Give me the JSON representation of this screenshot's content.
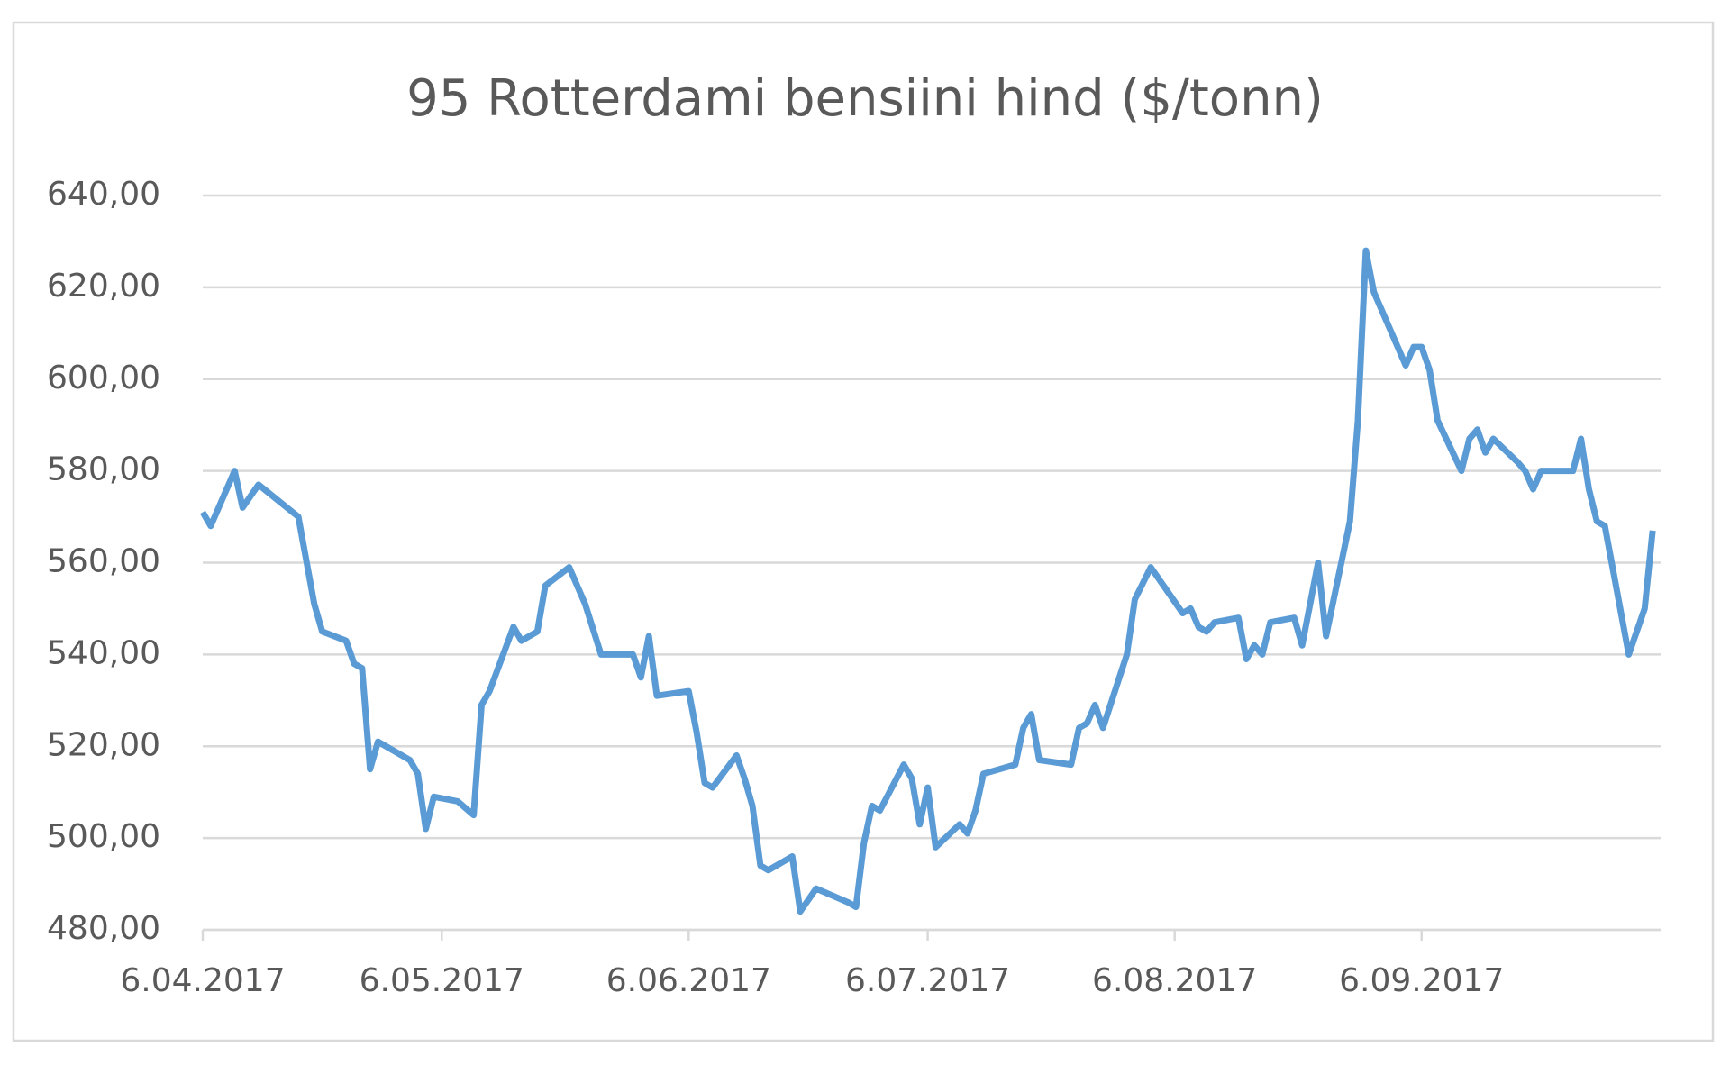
{
  "chart_data": {
    "type": "line",
    "title": "95 Rotterdami bensiini hind ($/tonn)",
    "x": [
      "2017-04-06",
      "2017-04-07",
      "2017-04-10",
      "2017-04-11",
      "2017-04-13",
      "2017-04-18",
      "2017-04-20",
      "2017-04-21",
      "2017-04-24",
      "2017-04-25",
      "2017-04-26",
      "2017-04-27",
      "2017-04-28",
      "2017-05-02",
      "2017-05-03",
      "2017-05-04",
      "2017-05-05",
      "2017-05-08",
      "2017-05-10",
      "2017-05-11",
      "2017-05-12",
      "2017-05-15",
      "2017-05-16",
      "2017-05-18",
      "2017-05-19",
      "2017-05-22",
      "2017-05-24",
      "2017-05-26",
      "2017-05-30",
      "2017-05-31",
      "2017-06-01",
      "2017-06-02",
      "2017-06-06",
      "2017-06-07",
      "2017-06-08",
      "2017-06-09",
      "2017-06-12",
      "2017-06-13",
      "2017-06-14",
      "2017-06-15",
      "2017-06-16",
      "2017-06-19",
      "2017-06-20",
      "2017-06-22",
      "2017-06-26",
      "2017-06-27",
      "2017-06-28",
      "2017-06-29",
      "2017-06-30",
      "2017-07-03",
      "2017-07-04",
      "2017-07-05",
      "2017-07-06",
      "2017-07-07",
      "2017-07-10",
      "2017-07-11",
      "2017-07-12",
      "2017-07-13",
      "2017-07-17",
      "2017-07-18",
      "2017-07-19",
      "2017-07-20",
      "2017-07-24",
      "2017-07-25",
      "2017-07-26",
      "2017-07-27",
      "2017-07-28",
      "2017-07-31",
      "2017-08-01",
      "2017-08-03",
      "2017-08-07",
      "2017-08-08",
      "2017-08-09",
      "2017-08-10",
      "2017-08-11",
      "2017-08-14",
      "2017-08-15",
      "2017-08-16",
      "2017-08-17",
      "2017-08-18",
      "2017-08-21",
      "2017-08-22",
      "2017-08-23",
      "2017-08-24",
      "2017-08-25",
      "2017-08-28",
      "2017-08-29",
      "2017-08-30",
      "2017-08-31",
      "2017-09-04",
      "2017-09-05",
      "2017-09-06",
      "2017-09-07",
      "2017-09-08",
      "2017-09-11",
      "2017-09-12",
      "2017-09-13",
      "2017-09-14",
      "2017-09-15",
      "2017-09-18",
      "2017-09-19",
      "2017-09-20",
      "2017-09-21",
      "2017-09-25",
      "2017-09-26",
      "2017-09-27",
      "2017-09-28",
      "2017-09-29",
      "2017-10-02",
      "2017-10-04",
      "2017-10-05"
    ],
    "series": [
      {
        "color": "#5b9bd5",
        "values": [
          571,
          568,
          580,
          572,
          577,
          570,
          551,
          545,
          543,
          538,
          537,
          515,
          521,
          517,
          514,
          502,
          509,
          508,
          505,
          529,
          532,
          546,
          543,
          545,
          555,
          559,
          551,
          540,
          540,
          535,
          544,
          531,
          532,
          523,
          512,
          511,
          518,
          513,
          507,
          494,
          493,
          496,
          484,
          489,
          486,
          485,
          499,
          507,
          506,
          516,
          513,
          503,
          511,
          498,
          503,
          501,
          506,
          514,
          516,
          524,
          527,
          517,
          516,
          524,
          525,
          529,
          524,
          540,
          552,
          559,
          549,
          550,
          546,
          545,
          547,
          548,
          539,
          542,
          540,
          547,
          548,
          542,
          551,
          560,
          544,
          569,
          591,
          628,
          619,
          603,
          607,
          607,
          602,
          591,
          580,
          587,
          589,
          584,
          587,
          582,
          580,
          576,
          580,
          580,
          587,
          576,
          569,
          568,
          540,
          550,
          567
        ]
      }
    ],
    "xlim": [
      "2017-04-06",
      "2017-10-06"
    ],
    "xticks": [
      {
        "value": "2017-04-06",
        "label": "6.04.2017"
      },
      {
        "value": "2017-05-06",
        "label": "6.05.2017"
      },
      {
        "value": "2017-06-06",
        "label": "6.06.2017"
      },
      {
        "value": "2017-07-06",
        "label": "6.07.2017"
      },
      {
        "value": "2017-08-06",
        "label": "6.08.2017"
      },
      {
        "value": "2017-09-06",
        "label": "6.09.2017"
      }
    ],
    "ylim": [
      480,
      640
    ],
    "yticks": [
      {
        "value": 480,
        "label": "480,00"
      },
      {
        "value": 500,
        "label": "500,00"
      },
      {
        "value": 520,
        "label": "520,00"
      },
      {
        "value": 540,
        "label": "540,00"
      },
      {
        "value": 560,
        "label": "560,00"
      },
      {
        "value": 580,
        "label": "580,00"
      },
      {
        "value": 600,
        "label": "600,00"
      },
      {
        "value": 620,
        "label": "620,00"
      },
      {
        "value": 640,
        "label": "640,00"
      }
    ],
    "grid": true
  }
}
